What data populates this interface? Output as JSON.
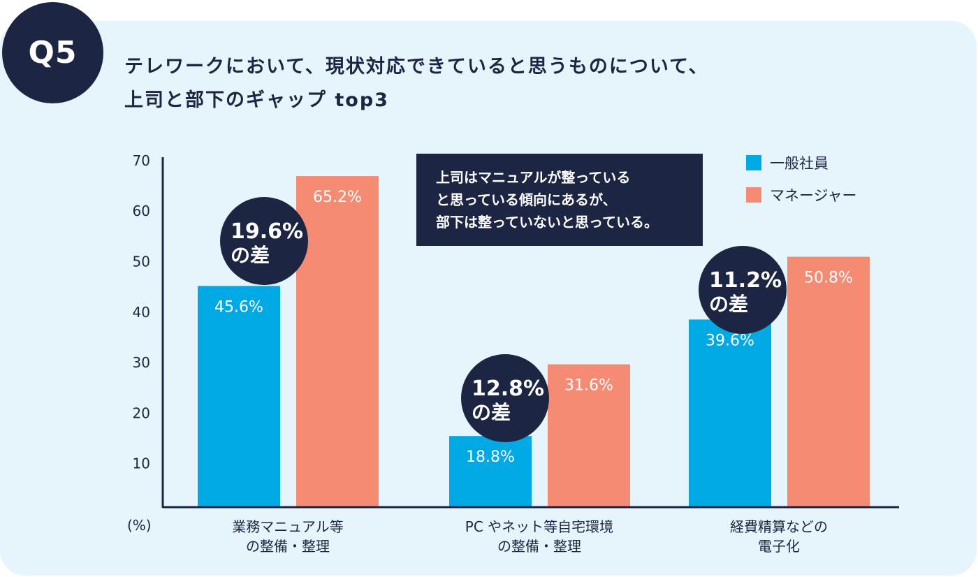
{
  "badge": "Q5",
  "title_lines": [
    "テレワークにおいて、現状対応できていると思うものについて、",
    "上司と部下のギャップ top3"
  ],
  "note_lines": [
    "上司はマニュアルが整っている",
    "と思っている傾向にあるが、",
    "部下は整っていないと思っている。"
  ],
  "colors": {
    "general": "#00a9e4",
    "manager": "#f58b73",
    "navy": "#1c2542",
    "background": "#e6f4fc"
  },
  "chart_data": {
    "type": "bar",
    "categories": [
      [
        "業務マニュアル等",
        "の整備・整理"
      ],
      [
        "PC やネット等自宅環境",
        "の整備・整理"
      ],
      [
        "経費精算などの",
        "電子化"
      ]
    ],
    "series": [
      {
        "name": "一般社員",
        "values": [
          45.6,
          18.8,
          39.6
        ],
        "labels": [
          "45.6%",
          "18.8%",
          "39.6%"
        ]
      },
      {
        "name": "マネージャー",
        "values": [
          65.2,
          31.6,
          50.8
        ],
        "labels": [
          "65.2%",
          "31.6%",
          "50.8%"
        ]
      }
    ],
    "gaps": [
      [
        "19.6%",
        "の差"
      ],
      [
        "12.8%",
        "の差"
      ],
      [
        "11.2%",
        "の差"
      ]
    ],
    "yticks": [
      "10",
      "20",
      "30",
      "40",
      "50",
      "60",
      "70"
    ],
    "ylabel": "(%)",
    "ylim": [
      0,
      70
    ],
    "grid": false,
    "legend": "top-right"
  }
}
